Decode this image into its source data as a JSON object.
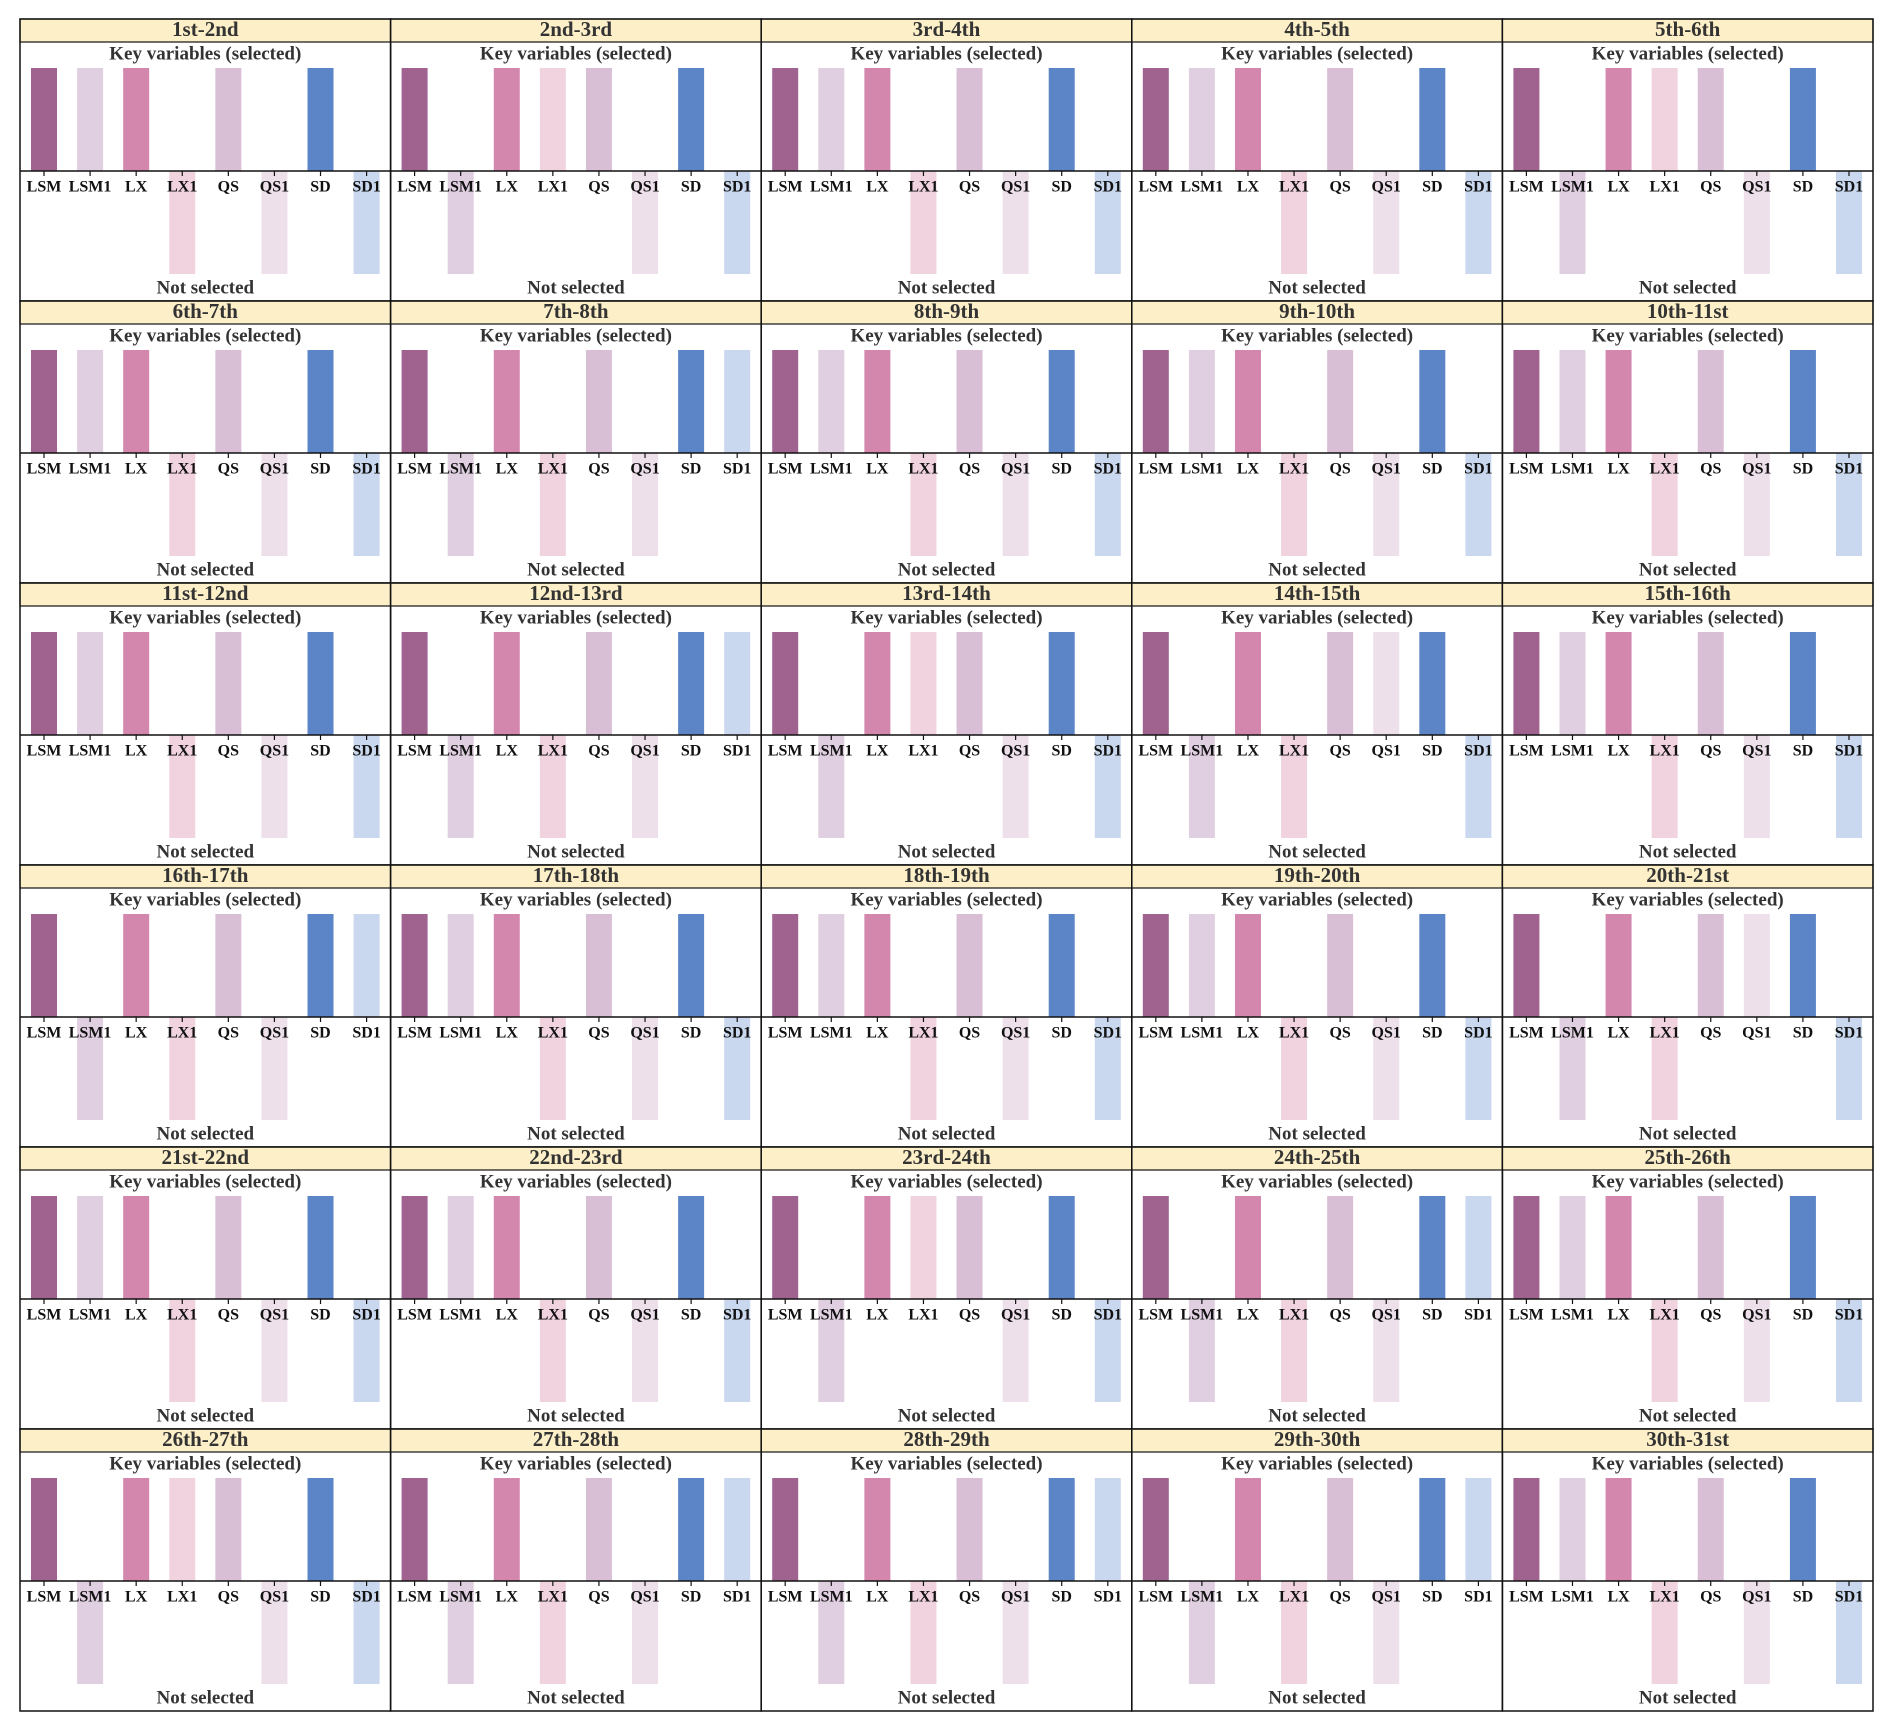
{
  "chart_data": [
    {
      "type": "bar",
      "title": "1st-2nd",
      "subtitle": "Key variables (selected)",
      "xlabel": "Not selected",
      "categories": [
        "LSM",
        "LSM1",
        "LX",
        "LX1",
        "QS",
        "QS1",
        "SD",
        "SD1"
      ],
      "values": [
        1,
        1,
        1,
        -1,
        1,
        -1,
        1,
        -1
      ],
      "colors": [
        "#a0628f",
        "#e0cfe0",
        "#d487ac",
        "#f0d3df",
        "#d8bfd6",
        "#ede0ea",
        "#5b85c6",
        "#c9d8ee"
      ],
      "ylim": [
        -1,
        1
      ]
    },
    {
      "type": "bar",
      "title": "2nd-3rd",
      "subtitle": "Key variables (selected)",
      "xlabel": "Not selected",
      "categories": [
        "LSM",
        "LSM1",
        "LX",
        "LX1",
        "QS",
        "QS1",
        "SD",
        "SD1"
      ],
      "values": [
        1,
        -1,
        1,
        1,
        1,
        -1,
        1,
        -1
      ],
      "colors": [
        "#a0628f",
        "#e0cfe0",
        "#d487ac",
        "#f0d3df",
        "#d8bfd6",
        "#ede0ea",
        "#5b85c6",
        "#c9d8ee"
      ],
      "ylim": [
        -1,
        1
      ]
    },
    {
      "type": "bar",
      "title": "3rd-4th",
      "subtitle": "Key variables (selected)",
      "xlabel": "Not selected",
      "categories": [
        "LSM",
        "LSM1",
        "LX",
        "LX1",
        "QS",
        "QS1",
        "SD",
        "SD1"
      ],
      "values": [
        1,
        1,
        1,
        -1,
        1,
        -1,
        1,
        -1
      ],
      "colors": [
        "#a0628f",
        "#e0cfe0",
        "#d487ac",
        "#f0d3df",
        "#d8bfd6",
        "#ede0ea",
        "#5b85c6",
        "#c9d8ee"
      ],
      "ylim": [
        -1,
        1
      ]
    },
    {
      "type": "bar",
      "title": "4th-5th",
      "subtitle": "Key variables (selected)",
      "xlabel": "Not selected",
      "categories": [
        "LSM",
        "LSM1",
        "LX",
        "LX1",
        "QS",
        "QS1",
        "SD",
        "SD1"
      ],
      "values": [
        1,
        1,
        1,
        -1,
        1,
        -1,
        1,
        -1
      ],
      "colors": [
        "#a0628f",
        "#e0cfe0",
        "#d487ac",
        "#f0d3df",
        "#d8bfd6",
        "#ede0ea",
        "#5b85c6",
        "#c9d8ee"
      ],
      "ylim": [
        -1,
        1
      ]
    },
    {
      "type": "bar",
      "title": "5th-6th",
      "subtitle": "Key variables (selected)",
      "xlabel": "Not selected",
      "categories": [
        "LSM",
        "LSM1",
        "LX",
        "LX1",
        "QS",
        "QS1",
        "SD",
        "SD1"
      ],
      "values": [
        1,
        -1,
        1,
        1,
        1,
        -1,
        1,
        -1
      ],
      "colors": [
        "#a0628f",
        "#e0cfe0",
        "#d487ac",
        "#f0d3df",
        "#d8bfd6",
        "#ede0ea",
        "#5b85c6",
        "#c9d8ee"
      ],
      "ylim": [
        -1,
        1
      ]
    },
    {
      "type": "bar",
      "title": "6th-7th",
      "subtitle": "Key variables (selected)",
      "xlabel": "Not selected",
      "categories": [
        "LSM",
        "LSM1",
        "LX",
        "LX1",
        "QS",
        "QS1",
        "SD",
        "SD1"
      ],
      "values": [
        1,
        1,
        1,
        -1,
        1,
        -1,
        1,
        -1
      ],
      "colors": [
        "#a0628f",
        "#e0cfe0",
        "#d487ac",
        "#f0d3df",
        "#d8bfd6",
        "#ede0ea",
        "#5b85c6",
        "#c9d8ee"
      ],
      "ylim": [
        -1,
        1
      ]
    },
    {
      "type": "bar",
      "title": "7th-8th",
      "subtitle": "Key variables (selected)",
      "xlabel": "Not selected",
      "categories": [
        "LSM",
        "LSM1",
        "LX",
        "LX1",
        "QS",
        "QS1",
        "SD",
        "SD1"
      ],
      "values": [
        1,
        -1,
        1,
        -1,
        1,
        -1,
        1,
        1
      ],
      "colors": [
        "#a0628f",
        "#e0cfe0",
        "#d487ac",
        "#f0d3df",
        "#d8bfd6",
        "#ede0ea",
        "#5b85c6",
        "#c9d8ee"
      ],
      "ylim": [
        -1,
        1
      ]
    },
    {
      "type": "bar",
      "title": "8th-9th",
      "subtitle": "Key variables (selected)",
      "xlabel": "Not selected",
      "categories": [
        "LSM",
        "LSM1",
        "LX",
        "LX1",
        "QS",
        "QS1",
        "SD",
        "SD1"
      ],
      "values": [
        1,
        1,
        1,
        -1,
        1,
        -1,
        1,
        -1
      ],
      "colors": [
        "#a0628f",
        "#e0cfe0",
        "#d487ac",
        "#f0d3df",
        "#d8bfd6",
        "#ede0ea",
        "#5b85c6",
        "#c9d8ee"
      ],
      "ylim": [
        -1,
        1
      ]
    },
    {
      "type": "bar",
      "title": "9th-10th",
      "subtitle": "Key variables (selected)",
      "xlabel": "Not selected",
      "categories": [
        "LSM",
        "LSM1",
        "LX",
        "LX1",
        "QS",
        "QS1",
        "SD",
        "SD1"
      ],
      "values": [
        1,
        1,
        1,
        -1,
        1,
        -1,
        1,
        -1
      ],
      "colors": [
        "#a0628f",
        "#e0cfe0",
        "#d487ac",
        "#f0d3df",
        "#d8bfd6",
        "#ede0ea",
        "#5b85c6",
        "#c9d8ee"
      ],
      "ylim": [
        -1,
        1
      ]
    },
    {
      "type": "bar",
      "title": "10th-11st",
      "subtitle": "Key variables (selected)",
      "xlabel": "Not selected",
      "categories": [
        "LSM",
        "LSM1",
        "LX",
        "LX1",
        "QS",
        "QS1",
        "SD",
        "SD1"
      ],
      "values": [
        1,
        1,
        1,
        -1,
        1,
        -1,
        1,
        -1
      ],
      "colors": [
        "#a0628f",
        "#e0cfe0",
        "#d487ac",
        "#f0d3df",
        "#d8bfd6",
        "#ede0ea",
        "#5b85c6",
        "#c9d8ee"
      ],
      "ylim": [
        -1,
        1
      ]
    },
    {
      "type": "bar",
      "title": "11st-12nd",
      "subtitle": "Key variables (selected)",
      "xlabel": "Not selected",
      "categories": [
        "LSM",
        "LSM1",
        "LX",
        "LX1",
        "QS",
        "QS1",
        "SD",
        "SD1"
      ],
      "values": [
        1,
        1,
        1,
        -1,
        1,
        -1,
        1,
        -1
      ],
      "colors": [
        "#a0628f",
        "#e0cfe0",
        "#d487ac",
        "#f0d3df",
        "#d8bfd6",
        "#ede0ea",
        "#5b85c6",
        "#c9d8ee"
      ],
      "ylim": [
        -1,
        1
      ]
    },
    {
      "type": "bar",
      "title": "12nd-13rd",
      "subtitle": "Key variables (selected)",
      "xlabel": "Not selected",
      "categories": [
        "LSM",
        "LSM1",
        "LX",
        "LX1",
        "QS",
        "QS1",
        "SD",
        "SD1"
      ],
      "values": [
        1,
        -1,
        1,
        -1,
        1,
        -1,
        1,
        1
      ],
      "colors": [
        "#a0628f",
        "#e0cfe0",
        "#d487ac",
        "#f0d3df",
        "#d8bfd6",
        "#ede0ea",
        "#5b85c6",
        "#c9d8ee"
      ],
      "ylim": [
        -1,
        1
      ]
    },
    {
      "type": "bar",
      "title": "13rd-14th",
      "subtitle": "Key variables (selected)",
      "xlabel": "Not selected",
      "categories": [
        "LSM",
        "LSM1",
        "LX",
        "LX1",
        "QS",
        "QS1",
        "SD",
        "SD1"
      ],
      "values": [
        1,
        -1,
        1,
        1,
        1,
        -1,
        1,
        -1
      ],
      "colors": [
        "#a0628f",
        "#e0cfe0",
        "#d487ac",
        "#f0d3df",
        "#d8bfd6",
        "#ede0ea",
        "#5b85c6",
        "#c9d8ee"
      ],
      "ylim": [
        -1,
        1
      ]
    },
    {
      "type": "bar",
      "title": "14th-15th",
      "subtitle": "Key variables (selected)",
      "xlabel": "Not selected",
      "categories": [
        "LSM",
        "LSM1",
        "LX",
        "LX1",
        "QS",
        "QS1",
        "SD",
        "SD1"
      ],
      "values": [
        1,
        -1,
        1,
        -1,
        1,
        1,
        1,
        -1
      ],
      "colors": [
        "#a0628f",
        "#e0cfe0",
        "#d487ac",
        "#f0d3df",
        "#d8bfd6",
        "#ede0ea",
        "#5b85c6",
        "#c9d8ee"
      ],
      "ylim": [
        -1,
        1
      ]
    },
    {
      "type": "bar",
      "title": "15th-16th",
      "subtitle": "Key variables (selected)",
      "xlabel": "Not selected",
      "categories": [
        "LSM",
        "LSM1",
        "LX",
        "LX1",
        "QS",
        "QS1",
        "SD",
        "SD1"
      ],
      "values": [
        1,
        1,
        1,
        -1,
        1,
        -1,
        1,
        -1
      ],
      "colors": [
        "#a0628f",
        "#e0cfe0",
        "#d487ac",
        "#f0d3df",
        "#d8bfd6",
        "#ede0ea",
        "#5b85c6",
        "#c9d8ee"
      ],
      "ylim": [
        -1,
        1
      ]
    },
    {
      "type": "bar",
      "title": "16th-17th",
      "subtitle": "Key variables (selected)",
      "xlabel": "Not selected",
      "categories": [
        "LSM",
        "LSM1",
        "LX",
        "LX1",
        "QS",
        "QS1",
        "SD",
        "SD1"
      ],
      "values": [
        1,
        -1,
        1,
        -1,
        1,
        -1,
        1,
        1
      ],
      "colors": [
        "#a0628f",
        "#e0cfe0",
        "#d487ac",
        "#f0d3df",
        "#d8bfd6",
        "#ede0ea",
        "#5b85c6",
        "#c9d8ee"
      ],
      "ylim": [
        -1,
        1
      ]
    },
    {
      "type": "bar",
      "title": "17th-18th",
      "subtitle": "Key variables (selected)",
      "xlabel": "Not selected",
      "categories": [
        "LSM",
        "LSM1",
        "LX",
        "LX1",
        "QS",
        "QS1",
        "SD",
        "SD1"
      ],
      "values": [
        1,
        1,
        1,
        -1,
        1,
        -1,
        1,
        -1
      ],
      "colors": [
        "#a0628f",
        "#e0cfe0",
        "#d487ac",
        "#f0d3df",
        "#d8bfd6",
        "#ede0ea",
        "#5b85c6",
        "#c9d8ee"
      ],
      "ylim": [
        -1,
        1
      ]
    },
    {
      "type": "bar",
      "title": "18th-19th",
      "subtitle": "Key variables (selected)",
      "xlabel": "Not selected",
      "categories": [
        "LSM",
        "LSM1",
        "LX",
        "LX1",
        "QS",
        "QS1",
        "SD",
        "SD1"
      ],
      "values": [
        1,
        1,
        1,
        -1,
        1,
        -1,
        1,
        -1
      ],
      "colors": [
        "#a0628f",
        "#e0cfe0",
        "#d487ac",
        "#f0d3df",
        "#d8bfd6",
        "#ede0ea",
        "#5b85c6",
        "#c9d8ee"
      ],
      "ylim": [
        -1,
        1
      ]
    },
    {
      "type": "bar",
      "title": "19th-20th",
      "subtitle": "Key variables (selected)",
      "xlabel": "Not selected",
      "categories": [
        "LSM",
        "LSM1",
        "LX",
        "LX1",
        "QS",
        "QS1",
        "SD",
        "SD1"
      ],
      "values": [
        1,
        1,
        1,
        -1,
        1,
        -1,
        1,
        -1
      ],
      "colors": [
        "#a0628f",
        "#e0cfe0",
        "#d487ac",
        "#f0d3df",
        "#d8bfd6",
        "#ede0ea",
        "#5b85c6",
        "#c9d8ee"
      ],
      "ylim": [
        -1,
        1
      ]
    },
    {
      "type": "bar",
      "title": "20th-21st",
      "subtitle": "Key variables (selected)",
      "xlabel": "Not selected",
      "categories": [
        "LSM",
        "LSM1",
        "LX",
        "LX1",
        "QS",
        "QS1",
        "SD",
        "SD1"
      ],
      "values": [
        1,
        -1,
        1,
        -1,
        1,
        1,
        1,
        -1
      ],
      "colors": [
        "#a0628f",
        "#e0cfe0",
        "#d487ac",
        "#f0d3df",
        "#d8bfd6",
        "#ede0ea",
        "#5b85c6",
        "#c9d8ee"
      ],
      "ylim": [
        -1,
        1
      ]
    },
    {
      "type": "bar",
      "title": "21st-22nd",
      "subtitle": "Key variables (selected)",
      "xlabel": "Not selected",
      "categories": [
        "LSM",
        "LSM1",
        "LX",
        "LX1",
        "QS",
        "QS1",
        "SD",
        "SD1"
      ],
      "values": [
        1,
        1,
        1,
        -1,
        1,
        -1,
        1,
        -1
      ],
      "colors": [
        "#a0628f",
        "#e0cfe0",
        "#d487ac",
        "#f0d3df",
        "#d8bfd6",
        "#ede0ea",
        "#5b85c6",
        "#c9d8ee"
      ],
      "ylim": [
        -1,
        1
      ]
    },
    {
      "type": "bar",
      "title": "22nd-23rd",
      "subtitle": "Key variables (selected)",
      "xlabel": "Not selected",
      "categories": [
        "LSM",
        "LSM1",
        "LX",
        "LX1",
        "QS",
        "QS1",
        "SD",
        "SD1"
      ],
      "values": [
        1,
        1,
        1,
        -1,
        1,
        -1,
        1,
        -1
      ],
      "colors": [
        "#a0628f",
        "#e0cfe0",
        "#d487ac",
        "#f0d3df",
        "#d8bfd6",
        "#ede0ea",
        "#5b85c6",
        "#c9d8ee"
      ],
      "ylim": [
        -1,
        1
      ]
    },
    {
      "type": "bar",
      "title": "23rd-24th",
      "subtitle": "Key variables (selected)",
      "xlabel": "Not selected",
      "categories": [
        "LSM",
        "LSM1",
        "LX",
        "LX1",
        "QS",
        "QS1",
        "SD",
        "SD1"
      ],
      "values": [
        1,
        -1,
        1,
        1,
        1,
        -1,
        1,
        -1
      ],
      "colors": [
        "#a0628f",
        "#e0cfe0",
        "#d487ac",
        "#f0d3df",
        "#d8bfd6",
        "#ede0ea",
        "#5b85c6",
        "#c9d8ee"
      ],
      "ylim": [
        -1,
        1
      ]
    },
    {
      "type": "bar",
      "title": "24th-25th",
      "subtitle": "Key variables (selected)",
      "xlabel": "Not selected",
      "categories": [
        "LSM",
        "LSM1",
        "LX",
        "LX1",
        "QS",
        "QS1",
        "SD",
        "SD1"
      ],
      "values": [
        1,
        -1,
        1,
        -1,
        1,
        -1,
        1,
        1
      ],
      "colors": [
        "#a0628f",
        "#e0cfe0",
        "#d487ac",
        "#f0d3df",
        "#d8bfd6",
        "#ede0ea",
        "#5b85c6",
        "#c9d8ee"
      ],
      "ylim": [
        -1,
        1
      ]
    },
    {
      "type": "bar",
      "title": "25th-26th",
      "subtitle": "Key variables (selected)",
      "xlabel": "Not selected",
      "categories": [
        "LSM",
        "LSM1",
        "LX",
        "LX1",
        "QS",
        "QS1",
        "SD",
        "SD1"
      ],
      "values": [
        1,
        1,
        1,
        -1,
        1,
        -1,
        1,
        -1
      ],
      "colors": [
        "#a0628f",
        "#e0cfe0",
        "#d487ac",
        "#f0d3df",
        "#d8bfd6",
        "#ede0ea",
        "#5b85c6",
        "#c9d8ee"
      ],
      "ylim": [
        -1,
        1
      ]
    },
    {
      "type": "bar",
      "title": "26th-27th",
      "subtitle": "Key variables (selected)",
      "xlabel": "Not selected",
      "categories": [
        "LSM",
        "LSM1",
        "LX",
        "LX1",
        "QS",
        "QS1",
        "SD",
        "SD1"
      ],
      "values": [
        1,
        -1,
        1,
        1,
        1,
        -1,
        1,
        -1
      ],
      "colors": [
        "#a0628f",
        "#e0cfe0",
        "#d487ac",
        "#f0d3df",
        "#d8bfd6",
        "#ede0ea",
        "#5b85c6",
        "#c9d8ee"
      ],
      "ylim": [
        -1,
        1
      ]
    },
    {
      "type": "bar",
      "title": "27th-28th",
      "subtitle": "Key variables (selected)",
      "xlabel": "Not selected",
      "categories": [
        "LSM",
        "LSM1",
        "LX",
        "LX1",
        "QS",
        "QS1",
        "SD",
        "SD1"
      ],
      "values": [
        1,
        -1,
        1,
        -1,
        1,
        -1,
        1,
        1
      ],
      "colors": [
        "#a0628f",
        "#e0cfe0",
        "#d487ac",
        "#f0d3df",
        "#d8bfd6",
        "#ede0ea",
        "#5b85c6",
        "#c9d8ee"
      ],
      "ylim": [
        -1,
        1
      ]
    },
    {
      "type": "bar",
      "title": "28th-29th",
      "subtitle": "Key variables (selected)",
      "xlabel": "Not selected",
      "categories": [
        "LSM",
        "LSM1",
        "LX",
        "LX1",
        "QS",
        "QS1",
        "SD",
        "SD1"
      ],
      "values": [
        1,
        -1,
        1,
        -1,
        1,
        -1,
        1,
        1
      ],
      "colors": [
        "#a0628f",
        "#e0cfe0",
        "#d487ac",
        "#f0d3df",
        "#d8bfd6",
        "#ede0ea",
        "#5b85c6",
        "#c9d8ee"
      ],
      "ylim": [
        -1,
        1
      ]
    },
    {
      "type": "bar",
      "title": "29th-30th",
      "subtitle": "Key variables (selected)",
      "xlabel": "Not selected",
      "categories": [
        "LSM",
        "LSM1",
        "LX",
        "LX1",
        "QS",
        "QS1",
        "SD",
        "SD1"
      ],
      "values": [
        1,
        -1,
        1,
        -1,
        1,
        -1,
        1,
        1
      ],
      "colors": [
        "#a0628f",
        "#e0cfe0",
        "#d487ac",
        "#f0d3df",
        "#d8bfd6",
        "#ede0ea",
        "#5b85c6",
        "#c9d8ee"
      ],
      "ylim": [
        -1,
        1
      ]
    },
    {
      "type": "bar",
      "title": "30th-31st",
      "subtitle": "Key variables (selected)",
      "xlabel": "Not selected",
      "categories": [
        "LSM",
        "LSM1",
        "LX",
        "LX1",
        "QS",
        "QS1",
        "SD",
        "SD1"
      ],
      "values": [
        1,
        1,
        1,
        -1,
        1,
        -1,
        1,
        -1
      ],
      "colors": [
        "#a0628f",
        "#e0cfe0",
        "#d487ac",
        "#f0d3df",
        "#d8bfd6",
        "#ede0ea",
        "#5b85c6",
        "#c9d8ee"
      ],
      "ylim": [
        -1,
        1
      ]
    }
  ]
}
